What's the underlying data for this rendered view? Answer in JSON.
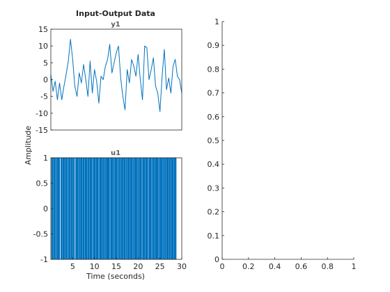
{
  "figure": {
    "title": "Input-Output Data",
    "xlabel": "Time (seconds)",
    "ylabel": "Amplitude",
    "line_color": "#0072BD"
  },
  "chart_data": [
    {
      "type": "line",
      "title": "y1",
      "xlim": [
        0,
        30
      ],
      "ylim": [
        -15,
        15
      ],
      "yticks": [
        15,
        10,
        5,
        0,
        -5,
        -10,
        -15
      ],
      "x_start": 0,
      "x_step": 0.5,
      "values": [
        1.5,
        -3.5,
        -0.5,
        -6,
        -1,
        -6,
        -2,
        1.5,
        5.5,
        12,
        6,
        -2,
        -5,
        2,
        -1,
        4.5,
        0,
        -5,
        5.5,
        -4,
        3,
        -0.5,
        -7,
        1,
        0,
        4,
        6,
        10.5,
        2,
        5,
        8,
        10,
        0.5,
        -5,
        -9,
        3,
        -1,
        6,
        4,
        1,
        7.5,
        0,
        -6,
        10,
        9.5,
        0,
        3,
        6.5,
        -2,
        -4,
        -9.5,
        1,
        9,
        -3,
        0.5,
        -4,
        4,
        6,
        1,
        0,
        -4
      ],
      "grid": false
    },
    {
      "type": "line",
      "title": "u1",
      "xlim": [
        0,
        30
      ],
      "ylim": [
        -1,
        1
      ],
      "yticks": [
        1,
        0.5,
        0,
        -0.5,
        -1
      ],
      "xticks": [
        5,
        10,
        15,
        20,
        25,
        30
      ],
      "signal": "binary",
      "x_start": 0,
      "x_step": 0.1,
      "values": [
        1,
        1,
        -1,
        1,
        -1,
        1,
        1,
        -1,
        1,
        -1,
        -1,
        1,
        -1,
        1,
        1,
        -1,
        1,
        -1,
        1,
        -1,
        1,
        1,
        1,
        -1,
        1,
        -1,
        -1,
        1,
        -1,
        1,
        -1,
        1,
        1,
        -1,
        1,
        -1,
        1,
        -1,
        -1,
        1,
        1,
        -1,
        1,
        -1,
        1,
        1,
        -1,
        1,
        -1,
        1,
        -1,
        -1,
        1,
        -1,
        1,
        1,
        1,
        -1,
        1,
        -1,
        1,
        -1,
        1,
        1,
        -1,
        1,
        -1,
        -1,
        1,
        -1,
        1,
        -1,
        1,
        1,
        -1,
        1,
        -1,
        1,
        1,
        -1,
        1,
        -1,
        1,
        -1,
        -1,
        1,
        -1,
        1,
        1,
        -1,
        1,
        -1,
        1,
        -1,
        1,
        1,
        -1,
        -1,
        1,
        -1,
        1,
        -1,
        1,
        1,
        -1,
        1,
        -1,
        1,
        -1,
        -1,
        1,
        1,
        -1,
        1,
        -1,
        1,
        -1,
        1,
        1,
        -1,
        1,
        -1,
        -1,
        1,
        -1,
        1,
        1,
        -1,
        1,
        -1,
        1,
        -1,
        1,
        -1,
        1,
        1,
        -1,
        -1,
        1,
        -1,
        1,
        -1,
        1,
        1,
        -1,
        1,
        1,
        -1,
        1,
        -1,
        1,
        -1,
        -1,
        1,
        -1,
        1,
        1,
        -1,
        1,
        -1,
        -1,
        1,
        -1,
        1,
        -1,
        1,
        1,
        -1,
        1,
        -1,
        1,
        1,
        -1,
        1,
        -1,
        -1,
        1,
        -1,
        1,
        -1,
        1,
        1,
        -1,
        1,
        -1,
        1,
        -1,
        -1,
        1,
        -1,
        1,
        1,
        -1,
        1,
        -1,
        1,
        -1,
        1,
        1,
        -1,
        1,
        -1,
        -1,
        1,
        -1,
        1,
        -1,
        1,
        1,
        -1,
        -1,
        1,
        -1,
        1,
        -1,
        1,
        1,
        -1,
        1,
        -1,
        1,
        -1,
        -1,
        1,
        1,
        -1,
        1,
        -1,
        1,
        -1,
        1,
        1,
        -1,
        -1,
        1,
        -1,
        1,
        -1,
        1,
        1,
        -1,
        1,
        -1,
        1,
        -1,
        1,
        -1,
        -1,
        1,
        1,
        -1,
        1,
        -1,
        1,
        -1,
        1,
        1,
        -1,
        1,
        -1,
        -1,
        1,
        -1,
        1,
        1,
        -1,
        1,
        -1,
        1,
        -1,
        1,
        1,
        -1,
        1,
        -1,
        -1,
        1,
        -1,
        1,
        -1,
        1,
        1,
        -1,
        1,
        -1,
        1,
        -1,
        1
      ],
      "grid": false
    },
    {
      "type": "line",
      "title": "",
      "xlim": [
        0,
        1
      ],
      "ylim": [
        0,
        1
      ],
      "xticks": [
        0,
        0.2,
        0.4,
        0.6,
        0.8,
        1
      ],
      "yticks": [
        1,
        0.9,
        0.8,
        0.7,
        0.6,
        0.5,
        0.4,
        0.3,
        0.2,
        0.1,
        0
      ],
      "values": [],
      "grid": false
    }
  ]
}
